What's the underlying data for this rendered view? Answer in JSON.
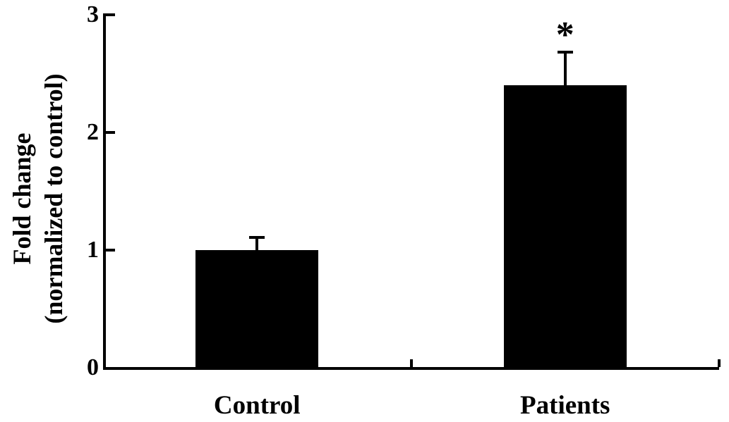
{
  "figure": {
    "background": "#ffffff"
  },
  "chart_data": {
    "type": "bar",
    "title": "",
    "xlabel": "",
    "ylabel": "Fold change (normalized to control)",
    "ylabel_lines": [
      "Fold change",
      "(normalized to control)"
    ],
    "categories": [
      "Control",
      "Patients"
    ],
    "values": [
      1.0,
      2.4
    ],
    "errors_upper": [
      0.11,
      0.28
    ],
    "significance": [
      "",
      "*"
    ],
    "yticks": [
      "0",
      "1",
      "2",
      "3"
    ],
    "ylim": [
      0,
      3
    ],
    "grid": false,
    "legend": null,
    "bar_color": "#000000",
    "axis_color": "#000000",
    "text_color": "#000000"
  }
}
